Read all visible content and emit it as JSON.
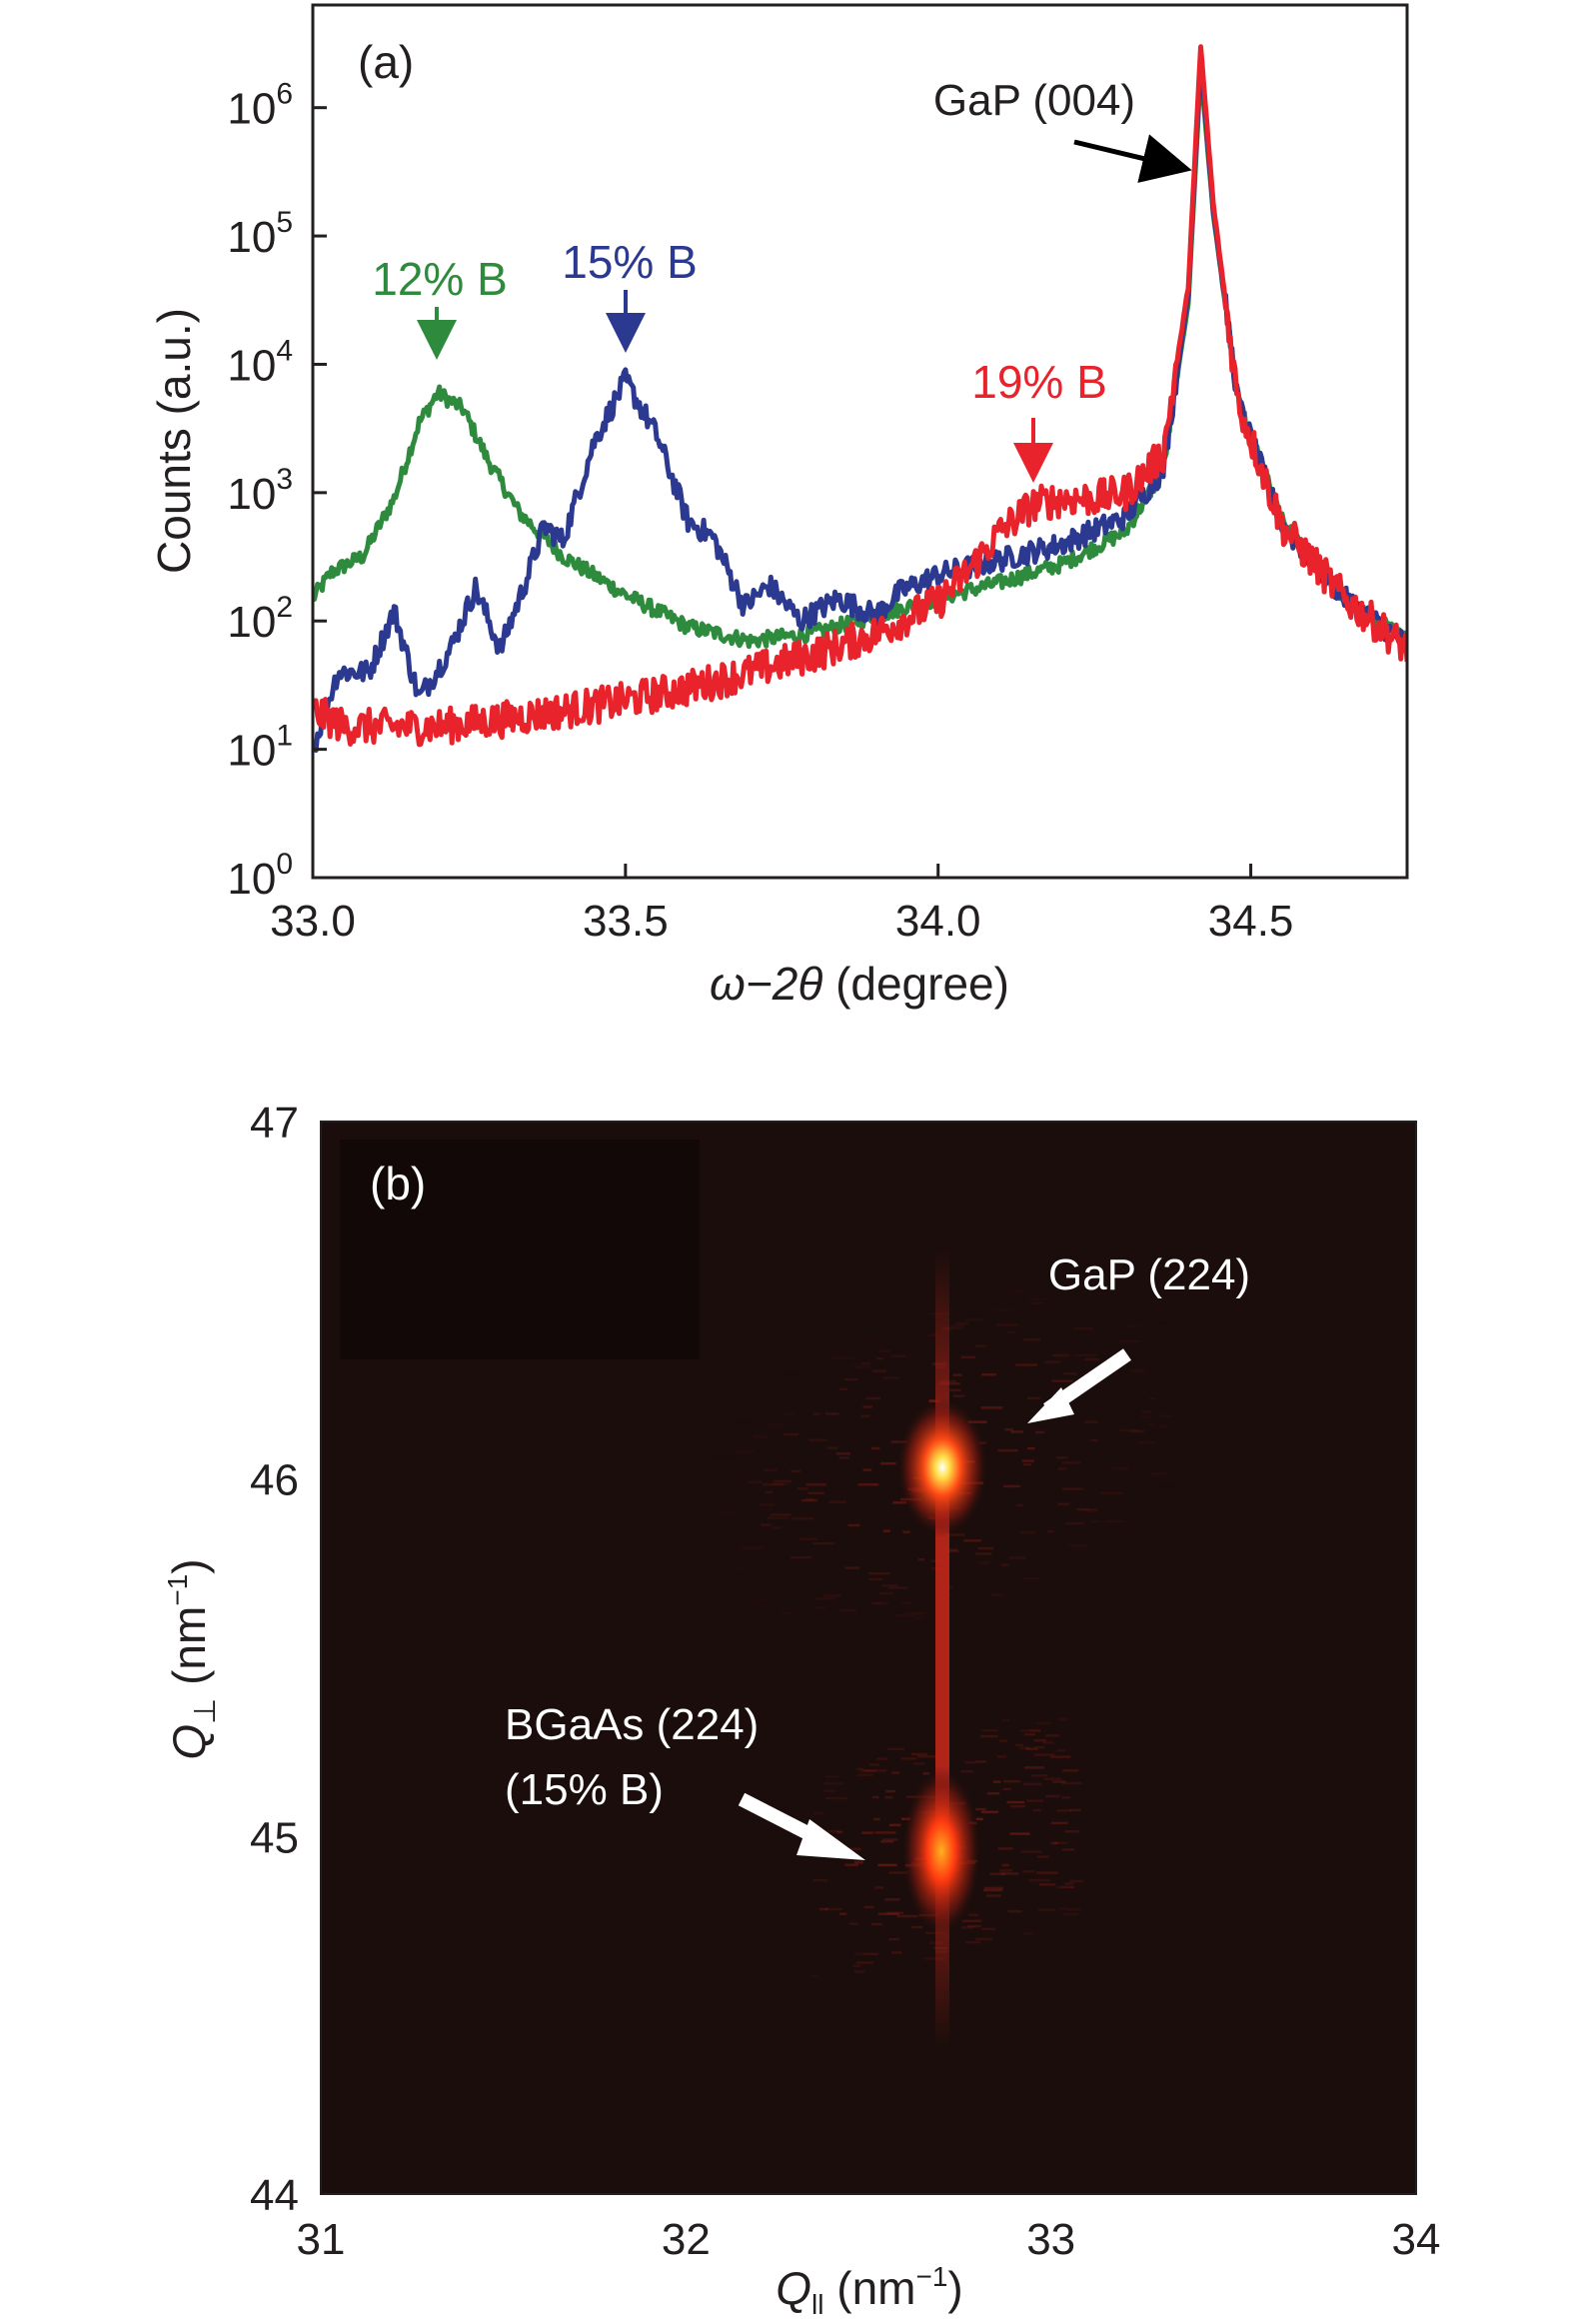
{
  "chart_data": [
    {
      "panel": "(a)",
      "type": "line",
      "xlabel_symbol": "ω−2θ",
      "xlabel_unit": "(degree)",
      "ylabel": "Counts (a.u.)",
      "xlim": [
        33.0,
        34.75
      ],
      "ylim_log10": [
        0,
        6.8
      ],
      "yscale": "log",
      "xticks": [
        "33.0",
        "33.5",
        "34.0",
        "34.5"
      ],
      "xtick_values": [
        33.0,
        33.5,
        34.0,
        34.5
      ],
      "yticks": [
        {
          "base": "10",
          "exp": "0",
          "value": 1
        },
        {
          "base": "10",
          "exp": "1",
          "value": 10
        },
        {
          "base": "10",
          "exp": "2",
          "value": 100
        },
        {
          "base": "10",
          "exp": "3",
          "value": 1000
        },
        {
          "base": "10",
          "exp": "4",
          "value": 10000
        },
        {
          "base": "10",
          "exp": "5",
          "value": 100000
        },
        {
          "base": "10",
          "exp": "6",
          "value": 1000000
        }
      ],
      "series": [
        {
          "name": "12% B",
          "color": "#2e8b3e",
          "points": [
            [
              33.0,
              150
            ],
            [
              33.03,
              240
            ],
            [
              33.08,
              320
            ],
            [
              33.13,
              900
            ],
            [
              33.17,
              3500
            ],
            [
              33.2,
              6000
            ],
            [
              33.24,
              4500
            ],
            [
              33.28,
              1800
            ],
            [
              33.33,
              700
            ],
            [
              33.4,
              320
            ],
            [
              33.5,
              160
            ],
            [
              33.6,
              90
            ],
            [
              33.7,
              70
            ],
            [
              33.8,
              80
            ],
            [
              33.9,
              110
            ],
            [
              34.0,
              150
            ],
            [
              34.1,
              200
            ],
            [
              34.2,
              280
            ],
            [
              34.3,
              500
            ],
            [
              34.36,
              1500
            ],
            [
              34.4,
              30000
            ],
            [
              34.42,
              2000000
            ],
            [
              34.44,
              150000
            ],
            [
              34.48,
              5000
            ],
            [
              34.55,
              600
            ],
            [
              34.65,
              150
            ],
            [
              34.75,
              70
            ]
          ]
        },
        {
          "name": "15% B",
          "color": "#2b3990",
          "points": [
            [
              33.0,
              10
            ],
            [
              33.04,
              40
            ],
            [
              33.09,
              40
            ],
            [
              33.13,
              120
            ],
            [
              33.17,
              25
            ],
            [
              33.22,
              60
            ],
            [
              33.26,
              180
            ],
            [
              33.3,
              60
            ],
            [
              33.34,
              200
            ],
            [
              33.37,
              550
            ],
            [
              33.4,
              420
            ],
            [
              33.45,
              2500
            ],
            [
              33.5,
              7500
            ],
            [
              33.55,
              2800
            ],
            [
              33.6,
              600
            ],
            [
              33.64,
              450
            ],
            [
              33.69,
              130
            ],
            [
              33.73,
              190
            ],
            [
              33.78,
              100
            ],
            [
              33.84,
              150
            ],
            [
              33.9,
              110
            ],
            [
              33.94,
              170
            ],
            [
              34.0,
              230
            ],
            [
              34.1,
              300
            ],
            [
              34.2,
              400
            ],
            [
              34.3,
              650
            ],
            [
              34.36,
              1500
            ],
            [
              34.4,
              35000
            ],
            [
              34.42,
              2500000
            ],
            [
              34.44,
              160000
            ],
            [
              34.48,
              5000
            ],
            [
              34.55,
              550
            ],
            [
              34.65,
              150
            ],
            [
              34.75,
              65
            ]
          ]
        },
        {
          "name": "19% B",
          "color": "#e8232b",
          "points": [
            [
              33.0,
              20
            ],
            [
              33.05,
              15
            ],
            [
              33.1,
              15
            ],
            [
              33.15,
              15
            ],
            [
              33.2,
              15
            ],
            [
              33.3,
              17
            ],
            [
              33.4,
              20
            ],
            [
              33.5,
              24
            ],
            [
              33.6,
              30
            ],
            [
              33.7,
              40
            ],
            [
              33.8,
              55
            ],
            [
              33.9,
              80
            ],
            [
              34.0,
              140
            ],
            [
              34.05,
              250
            ],
            [
              34.1,
              500
            ],
            [
              34.15,
              800
            ],
            [
              34.2,
              900
            ],
            [
              34.25,
              900
            ],
            [
              34.3,
              1000
            ],
            [
              34.36,
              2000
            ],
            [
              34.4,
              40000
            ],
            [
              34.42,
              3000000
            ],
            [
              34.44,
              180000
            ],
            [
              34.48,
              5000
            ],
            [
              34.55,
              550
            ],
            [
              34.65,
              150
            ],
            [
              34.75,
              60
            ]
          ]
        }
      ],
      "annotations": [
        {
          "text": "12% B",
          "color": "#2e8b3e",
          "x": 33.2,
          "y": 6000
        },
        {
          "text": "15% B",
          "color": "#2b3990",
          "x": 33.5,
          "y": 7500
        },
        {
          "text": "19% B",
          "color": "#e8232b",
          "x": 34.15,
          "y": 800
        },
        {
          "text": "GaP (004)",
          "color": "#231f20",
          "x": 34.42,
          "y": 200000
        }
      ]
    },
    {
      "panel": "(b)",
      "type": "heatmap",
      "xlabel_symbol": "Q",
      "xlabel_sub": "ll",
      "xlabel_unit": "(nm",
      "xlabel_unit_exp": "−1",
      "xlabel_unit_close": ")",
      "ylabel_symbol": "Q",
      "ylabel_sub": "⊥",
      "ylabel_unit": "(nm",
      "ylabel_unit_exp": "−1",
      "ylabel_unit_close": ")",
      "xlim": [
        31,
        34
      ],
      "ylim": [
        44,
        47
      ],
      "xticks": [
        "31",
        "32",
        "33",
        "34"
      ],
      "xtick_values": [
        31,
        32,
        33,
        34
      ],
      "yticks": [
        "44",
        "45",
        "46",
        "47"
      ],
      "ytick_values": [
        44,
        45,
        46,
        47
      ],
      "background": "#1a0d0b",
      "peaks": [
        {
          "name": "GaP (224)",
          "qx": 32.7,
          "qy": 46.05,
          "intensity": 1.0
        },
        {
          "name": "BGaAs (224)",
          "qx": 32.7,
          "qy": 44.98,
          "intensity": 0.7
        }
      ],
      "annotations": [
        {
          "text": "GaP (224)",
          "color": "#ffffff"
        },
        {
          "text": "BGaAs (224)",
          "color": "#ffffff"
        },
        {
          "text": "(15% B)",
          "color": "#ffffff"
        }
      ]
    }
  ]
}
